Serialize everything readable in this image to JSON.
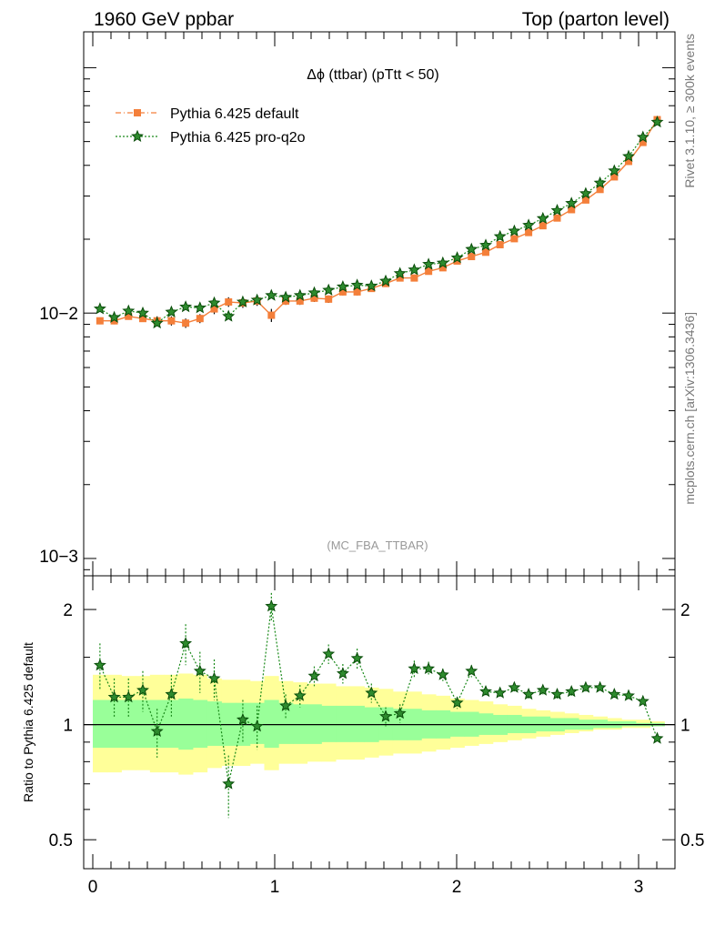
{
  "header": {
    "left": "1960 GeV ppbar",
    "right": "Top (parton level)"
  },
  "side_labels": {
    "top": "Rivet 3.1.10, ≥ 300k events",
    "bottom": "mcplots.cern.ch [arXiv:1306.3436]"
  },
  "chart_data": [
    {
      "type": "line",
      "title": "Δϕ (ttbar) (pTtt < 50)",
      "watermark": "(MC_FBA_TTBAR)",
      "xlabel": "",
      "ylabel": "",
      "yscale": "log",
      "ylim": [
        0.00085,
        0.14
      ],
      "xlim": [
        -0.05,
        3.2
      ],
      "legend_position": "top-left",
      "y_tick_labels": [
        "10−2",
        "10−3"
      ],
      "x": [
        0.0393,
        0.1178,
        0.1963,
        0.2749,
        0.3534,
        0.432,
        0.5105,
        0.589,
        0.6676,
        0.7461,
        0.8247,
        0.9032,
        0.9817,
        1.0603,
        1.1388,
        1.2174,
        1.2959,
        1.3744,
        1.453,
        1.5315,
        1.6101,
        1.6886,
        1.7671,
        1.8457,
        1.9242,
        2.0028,
        2.0813,
        2.1598,
        2.2384,
        2.3169,
        2.3955,
        2.474,
        2.5525,
        2.6311,
        2.7096,
        2.7882,
        2.8667,
        2.9452,
        3.0238,
        3.1023
      ],
      "series": [
        {
          "name": "Pythia 6.425 default",
          "color": "#f47f3a",
          "marker": "square",
          "values": [
            0.0093,
            0.0093,
            0.0097,
            0.0095,
            0.0093,
            0.0093,
            0.0091,
            0.0095,
            0.0104,
            0.0111,
            0.011,
            0.0112,
            0.0098,
            0.0112,
            0.0112,
            0.0115,
            0.0114,
            0.0122,
            0.0122,
            0.0126,
            0.0132,
            0.0139,
            0.0139,
            0.0148,
            0.0153,
            0.0163,
            0.017,
            0.0177,
            0.019,
            0.0201,
            0.0213,
            0.0227,
            0.0244,
            0.0264,
            0.0289,
            0.0319,
            0.0359,
            0.0415,
            0.0496,
            0.0614
          ],
          "errors": [
            0.0003,
            0.0003,
            0.0003,
            0.0003,
            0.0004,
            0.0004,
            0.0004,
            0.0004,
            0.0005,
            0.0005,
            0.0005,
            0.0005,
            0.0006,
            0.0004,
            0.0004,
            0.0004,
            0.0004,
            0.0004,
            0.0004,
            0.0004,
            0.0004,
            0.0004,
            0.0004,
            0.0004,
            0.0004,
            0.0004,
            0.0004,
            0.0004,
            0.0004,
            0.0004,
            0.0004,
            0.0004,
            0.0005,
            0.0005,
            0.0005,
            0.0006,
            0.0006,
            0.0007,
            0.0008,
            0.0009
          ]
        },
        {
          "name": "Pythia 6.425 pro-q2o",
          "color": "#1a8a1a",
          "marker": "star",
          "values": [
            0.0104,
            0.0096,
            0.0102,
            0.01,
            0.0091,
            0.0101,
            0.0106,
            0.0105,
            0.011,
            0.0097,
            0.0111,
            0.0113,
            0.0118,
            0.0116,
            0.0118,
            0.0121,
            0.0124,
            0.0128,
            0.013,
            0.0129,
            0.0135,
            0.0145,
            0.015,
            0.0158,
            0.016,
            0.0168,
            0.0182,
            0.0189,
            0.0205,
            0.0216,
            0.0228,
            0.0243,
            0.0262,
            0.028,
            0.0307,
            0.0339,
            0.038,
            0.0435,
            0.0521,
            0.06
          ]
        }
      ]
    },
    {
      "type": "line",
      "title": "",
      "xlabel": "",
      "ylabel": "Ratio to Pythia 6.425 default",
      "yscale": "log",
      "ylim": [
        0.42,
        2.45
      ],
      "xlim": [
        -0.05,
        3.2
      ],
      "y_ticks": [
        0.5,
        1,
        2
      ],
      "y_tick_labels": [
        "0.5",
        "1",
        "2"
      ],
      "x_ticks": [
        0,
        1,
        2,
        3
      ],
      "x_tick_labels": [
        "0",
        "1",
        "2",
        "3"
      ],
      "reference_line": 1,
      "band_outer": [
        {
          "lo": 0.75,
          "hi": 1.35
        },
        {
          "lo": 0.75,
          "hi": 1.35
        },
        {
          "lo": 0.76,
          "hi": 1.34
        },
        {
          "lo": 0.76,
          "hi": 1.34
        },
        {
          "lo": 0.75,
          "hi": 1.35
        },
        {
          "lo": 0.75,
          "hi": 1.35
        },
        {
          "lo": 0.74,
          "hi": 1.36
        },
        {
          "lo": 0.75,
          "hi": 1.35
        },
        {
          "lo": 0.77,
          "hi": 1.32
        },
        {
          "lo": 0.78,
          "hi": 1.31
        },
        {
          "lo": 0.78,
          "hi": 1.31
        },
        {
          "lo": 0.79,
          "hi": 1.3
        },
        {
          "lo": 0.76,
          "hi": 1.34
        },
        {
          "lo": 0.79,
          "hi": 1.3
        },
        {
          "lo": 0.79,
          "hi": 1.29
        },
        {
          "lo": 0.8,
          "hi": 1.28
        },
        {
          "lo": 0.8,
          "hi": 1.28
        },
        {
          "lo": 0.81,
          "hi": 1.26
        },
        {
          "lo": 0.81,
          "hi": 1.26
        },
        {
          "lo": 0.82,
          "hi": 1.25
        },
        {
          "lo": 0.83,
          "hi": 1.24
        },
        {
          "lo": 0.84,
          "hi": 1.22
        },
        {
          "lo": 0.84,
          "hi": 1.22
        },
        {
          "lo": 0.85,
          "hi": 1.2
        },
        {
          "lo": 0.86,
          "hi": 1.19
        },
        {
          "lo": 0.87,
          "hi": 1.17
        },
        {
          "lo": 0.88,
          "hi": 1.16
        },
        {
          "lo": 0.89,
          "hi": 1.15
        },
        {
          "lo": 0.9,
          "hi": 1.13
        },
        {
          "lo": 0.91,
          "hi": 1.12
        },
        {
          "lo": 0.92,
          "hi": 1.1
        },
        {
          "lo": 0.93,
          "hi": 1.09
        },
        {
          "lo": 0.94,
          "hi": 1.08
        },
        {
          "lo": 0.95,
          "hi": 1.07
        },
        {
          "lo": 0.96,
          "hi": 1.06
        },
        {
          "lo": 0.97,
          "hi": 1.05
        },
        {
          "lo": 0.97,
          "hi": 1.04
        },
        {
          "lo": 0.98,
          "hi": 1.03
        },
        {
          "lo": 0.98,
          "hi": 1.03
        },
        {
          "lo": 0.99,
          "hi": 1.02
        }
      ],
      "band_inner": [
        {
          "lo": 0.87,
          "hi": 1.16
        },
        {
          "lo": 0.87,
          "hi": 1.16
        },
        {
          "lo": 0.87,
          "hi": 1.16
        },
        {
          "lo": 0.87,
          "hi": 1.16
        },
        {
          "lo": 0.87,
          "hi": 1.16
        },
        {
          "lo": 0.87,
          "hi": 1.16
        },
        {
          "lo": 0.86,
          "hi": 1.17
        },
        {
          "lo": 0.87,
          "hi": 1.16
        },
        {
          "lo": 0.88,
          "hi": 1.15
        },
        {
          "lo": 0.88,
          "hi": 1.14
        },
        {
          "lo": 0.88,
          "hi": 1.14
        },
        {
          "lo": 0.89,
          "hi": 1.14
        },
        {
          "lo": 0.87,
          "hi": 1.16
        },
        {
          "lo": 0.89,
          "hi": 1.14
        },
        {
          "lo": 0.89,
          "hi": 1.13
        },
        {
          "lo": 0.89,
          "hi": 1.13
        },
        {
          "lo": 0.9,
          "hi": 1.12
        },
        {
          "lo": 0.9,
          "hi": 1.12
        },
        {
          "lo": 0.9,
          "hi": 1.12
        },
        {
          "lo": 0.9,
          "hi": 1.11
        },
        {
          "lo": 0.91,
          "hi": 1.11
        },
        {
          "lo": 0.91,
          "hi": 1.1
        },
        {
          "lo": 0.91,
          "hi": 1.1
        },
        {
          "lo": 0.92,
          "hi": 1.09
        },
        {
          "lo": 0.92,
          "hi": 1.09
        },
        {
          "lo": 0.93,
          "hi": 1.08
        },
        {
          "lo": 0.93,
          "hi": 1.08
        },
        {
          "lo": 0.94,
          "hi": 1.07
        },
        {
          "lo": 0.94,
          "hi": 1.06
        },
        {
          "lo": 0.95,
          "hi": 1.06
        },
        {
          "lo": 0.95,
          "hi": 1.05
        },
        {
          "lo": 0.96,
          "hi": 1.05
        },
        {
          "lo": 0.96,
          "hi": 1.04
        },
        {
          "lo": 0.97,
          "hi": 1.04
        },
        {
          "lo": 0.97,
          "hi": 1.03
        },
        {
          "lo": 0.98,
          "hi": 1.03
        },
        {
          "lo": 0.98,
          "hi": 1.02
        },
        {
          "lo": 0.99,
          "hi": 1.02
        },
        {
          "lo": 0.99,
          "hi": 1.01
        },
        {
          "lo": 0.99,
          "hi": 1.01
        }
      ],
      "series": [
        {
          "name": "Pythia 6.425 pro-q2o",
          "color": "#1a8a1a",
          "marker": "star",
          "values": [
            1.43,
            1.18,
            1.18,
            1.23,
            0.96,
            1.2,
            1.63,
            1.38,
            1.32,
            0.7,
            1.03,
            0.99,
            2.04,
            1.12,
            1.19,
            1.34,
            1.53,
            1.36,
            1.49,
            1.21,
            1.05,
            1.07,
            1.4,
            1.4,
            1.35,
            1.14,
            1.38,
            1.22,
            1.21,
            1.25,
            1.2,
            1.23,
            1.2,
            1.22,
            1.25,
            1.25,
            1.2,
            1.19,
            1.15,
            0.92
          ],
          "errors": [
            0.2,
            0.14,
            0.14,
            0.15,
            0.14,
            0.15,
            0.2,
            0.17,
            0.16,
            0.13,
            0.13,
            0.13,
            0.17,
            0.08,
            0.08,
            0.08,
            0.09,
            0.08,
            0.09,
            0.07,
            0.06,
            0.06,
            0.07,
            0.06,
            0.05,
            0.04,
            0.05,
            0.04,
            0.04,
            0.04,
            0.03,
            0.03,
            0.03,
            0.03,
            0.03,
            0.02,
            0.02,
            0.02,
            0.02,
            0.02
          ]
        }
      ]
    }
  ]
}
